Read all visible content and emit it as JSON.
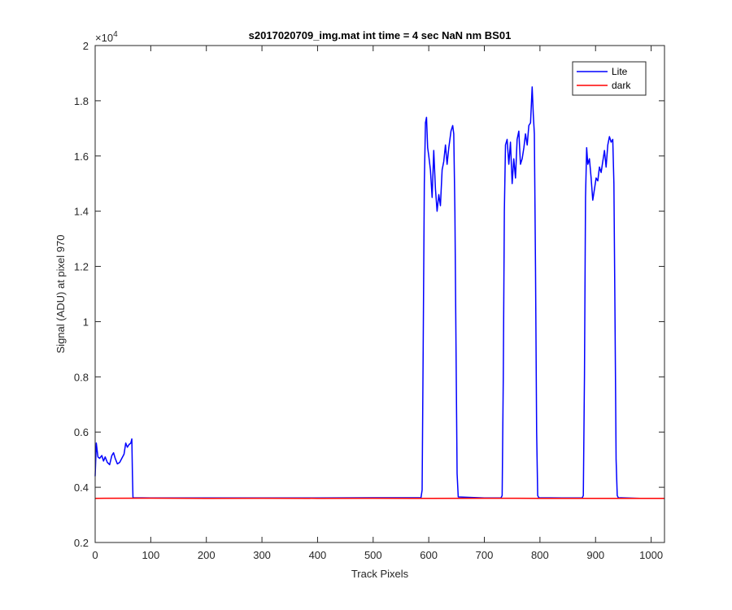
{
  "chart_data": {
    "type": "line",
    "title": "s2017020709_img.mat int time = 4 sec  NaN nm BS01",
    "xlabel": "Track Pixels",
    "ylabel": "Signal (ADU) at pixel 970",
    "xlim": [
      0,
      1024
    ],
    "ylim": [
      2000,
      20000
    ],
    "xticks": [
      0,
      100,
      200,
      300,
      400,
      500,
      600,
      700,
      800,
      900,
      1000
    ],
    "yticks": [
      2000,
      4000,
      6000,
      8000,
      10000,
      12000,
      14000,
      16000,
      18000,
      20000
    ],
    "ytick_labels": [
      "0.2",
      "0.4",
      "0.6",
      "0.8",
      "1",
      "1.2",
      "1.4",
      "1.6",
      "1.8",
      "2"
    ],
    "y_exponent_base": "×10",
    "y_exponent_power": "4",
    "grid": false,
    "legend_position": "top-right",
    "series": [
      {
        "name": "Lite",
        "color": "#0000ff",
        "points": [
          [
            0,
            4400
          ],
          [
            2,
            5600
          ],
          [
            5,
            5100
          ],
          [
            8,
            5050
          ],
          [
            12,
            5150
          ],
          [
            15,
            4950
          ],
          [
            18,
            5100
          ],
          [
            22,
            4900
          ],
          [
            26,
            4820
          ],
          [
            30,
            5150
          ],
          [
            33,
            5250
          ],
          [
            36,
            5050
          ],
          [
            40,
            4850
          ],
          [
            44,
            4900
          ],
          [
            48,
            5050
          ],
          [
            52,
            5200
          ],
          [
            55,
            5600
          ],
          [
            58,
            5450
          ],
          [
            61,
            5550
          ],
          [
            64,
            5600
          ],
          [
            66,
            5750
          ],
          [
            67,
            4500
          ],
          [
            68,
            3620
          ],
          [
            100,
            3610
          ],
          [
            200,
            3615
          ],
          [
            300,
            3610
          ],
          [
            400,
            3615
          ],
          [
            500,
            3620
          ],
          [
            586,
            3620
          ],
          [
            588,
            3900
          ],
          [
            590,
            9000
          ],
          [
            592,
            15000
          ],
          [
            594,
            17200
          ],
          [
            596,
            17400
          ],
          [
            598,
            16300
          ],
          [
            600,
            16000
          ],
          [
            603,
            15500
          ],
          [
            606,
            14500
          ],
          [
            609,
            16200
          ],
          [
            612,
            14800
          ],
          [
            615,
            14000
          ],
          [
            618,
            14600
          ],
          [
            621,
            14200
          ],
          [
            624,
            15500
          ],
          [
            627,
            15800
          ],
          [
            630,
            16400
          ],
          [
            633,
            15700
          ],
          [
            636,
            16300
          ],
          [
            640,
            16900
          ],
          [
            643,
            17100
          ],
          [
            645,
            16800
          ],
          [
            647,
            14000
          ],
          [
            649,
            9000
          ],
          [
            651,
            4500
          ],
          [
            653,
            3650
          ],
          [
            700,
            3610
          ],
          [
            730,
            3615
          ],
          [
            732,
            3700
          ],
          [
            734,
            8000
          ],
          [
            736,
            14000
          ],
          [
            738,
            16400
          ],
          [
            741,
            16600
          ],
          [
            744,
            15700
          ],
          [
            747,
            16500
          ],
          [
            750,
            15000
          ],
          [
            753,
            15900
          ],
          [
            756,
            15200
          ],
          [
            759,
            16600
          ],
          [
            762,
            16900
          ],
          [
            765,
            15700
          ],
          [
            768,
            15900
          ],
          [
            771,
            16300
          ],
          [
            774,
            16800
          ],
          [
            777,
            16400
          ],
          [
            780,
            17100
          ],
          [
            783,
            17200
          ],
          [
            786,
            18500
          ],
          [
            788,
            17500
          ],
          [
            790,
            16800
          ],
          [
            792,
            12000
          ],
          [
            794,
            6000
          ],
          [
            796,
            3700
          ],
          [
            798,
            3620
          ],
          [
            840,
            3610
          ],
          [
            876,
            3615
          ],
          [
            878,
            3700
          ],
          [
            880,
            8000
          ],
          [
            882,
            14500
          ],
          [
            884,
            16300
          ],
          [
            886,
            15700
          ],
          [
            889,
            15900
          ],
          [
            892,
            15200
          ],
          [
            895,
            14400
          ],
          [
            898,
            14800
          ],
          [
            901,
            15200
          ],
          [
            904,
            15100
          ],
          [
            907,
            15600
          ],
          [
            910,
            15400
          ],
          [
            913,
            15800
          ],
          [
            916,
            16200
          ],
          [
            919,
            15600
          ],
          [
            922,
            16400
          ],
          [
            925,
            16700
          ],
          [
            928,
            16500
          ],
          [
            931,
            16600
          ],
          [
            933,
            15000
          ],
          [
            935,
            10000
          ],
          [
            937,
            5000
          ],
          [
            939,
            3700
          ],
          [
            941,
            3620
          ],
          [
            980,
            3600
          ],
          [
            1024,
            3600
          ]
        ]
      },
      {
        "name": "dark",
        "color": "#ff0000",
        "points": [
          [
            0,
            3600
          ],
          [
            100,
            3605
          ],
          [
            200,
            3598
          ],
          [
            300,
            3602
          ],
          [
            400,
            3600
          ],
          [
            500,
            3604
          ],
          [
            600,
            3598
          ],
          [
            700,
            3603
          ],
          [
            800,
            3600
          ],
          [
            900,
            3601
          ],
          [
            1024,
            3600
          ]
        ]
      }
    ]
  }
}
